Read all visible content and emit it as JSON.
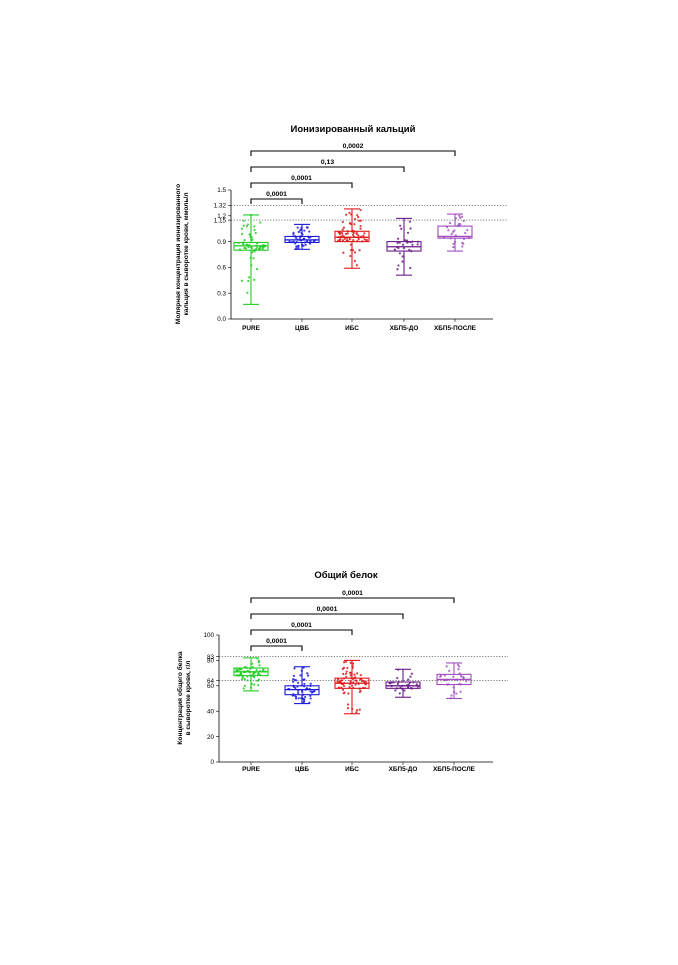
{
  "chart_data": [
    {
      "type": "box",
      "title": "Ионизированный кальций",
      "ylabel": [
        "Молярная концентрация ионизированного",
        "кальция в сыворотке крови, ммоль/л"
      ],
      "ylim": [
        0,
        1.5
      ],
      "yticks": [
        0.0,
        0.3,
        0.6,
        0.9,
        1.15,
        1.2,
        1.32,
        1.5
      ],
      "ytick_labels": [
        "0.0",
        "0.3",
        "0.6",
        "0.9",
        "1.15",
        "1.2",
        "1.32",
        "1.5"
      ],
      "reference_lines": [
        1.15,
        1.32
      ],
      "categories": [
        "PURE",
        "ЦВБ",
        "ИБС",
        "ХБП5-ДО",
        "ХБП5-ПОСЛЕ"
      ],
      "colors": [
        "#22cc22",
        "#1a1adc",
        "#e01818",
        "#6a1a8a",
        "#a24cc0"
      ],
      "boxes": [
        {
          "min": 0.17,
          "q1": 0.8,
          "median": 0.85,
          "q3": 0.89,
          "max": 1.21
        },
        {
          "min": 0.81,
          "q1": 0.89,
          "median": 0.92,
          "q3": 0.96,
          "max": 1.1
        },
        {
          "min": 0.59,
          "q1": 0.9,
          "median": 0.95,
          "q3": 1.02,
          "max": 1.28
        },
        {
          "min": 0.51,
          "q1": 0.79,
          "median": 0.84,
          "q3": 0.9,
          "max": 1.17
        },
        {
          "min": 0.79,
          "q1": 0.94,
          "median": 0.96,
          "q3": 1.08,
          "max": 1.22
        }
      ],
      "point_counts": [
        60,
        45,
        70,
        30,
        28
      ],
      "comparisons": [
        {
          "from": 0,
          "to": 1,
          "label": "0,0001"
        },
        {
          "from": 0,
          "to": 2,
          "label": "0,0001"
        },
        {
          "from": 0,
          "to": 3,
          "label": "0,13"
        },
        {
          "from": 0,
          "to": 4,
          "label": "0,0002"
        }
      ]
    },
    {
      "type": "box",
      "title": "Общий белок",
      "ylabel": [
        "Концентрация общего белка",
        "в сыворотке крови, г/л"
      ],
      "ylim": [
        0,
        100
      ],
      "yticks": [
        0,
        20,
        40,
        60,
        64,
        80,
        83,
        100
      ],
      "ytick_labels": [
        "0",
        "20",
        "40",
        "60",
        "64",
        "80",
        "83",
        "100"
      ],
      "reference_lines": [
        64,
        83
      ],
      "categories": [
        "PURE",
        "ЦВБ",
        "ИБС",
        "ХБП5-ДО",
        "ХБП5-ПОСЛЕ"
      ],
      "colors": [
        "#22cc22",
        "#1a1adc",
        "#e01818",
        "#6a1a8a",
        "#a24cc0"
      ],
      "boxes": [
        {
          "min": 56,
          "q1": 68,
          "median": 71,
          "q3": 74,
          "max": 82
        },
        {
          "min": 46,
          "q1": 53,
          "median": 57,
          "q3": 60,
          "max": 75
        },
        {
          "min": 38,
          "q1": 58,
          "median": 62,
          "q3": 66,
          "max": 80
        },
        {
          "min": 51,
          "q1": 58,
          "median": 60,
          "q3": 63,
          "max": 73
        },
        {
          "min": 50,
          "q1": 61,
          "median": 65,
          "q3": 69,
          "max": 78
        }
      ],
      "point_counts": [
        60,
        55,
        75,
        30,
        28
      ],
      "comparisons": [
        {
          "from": 0,
          "to": 1,
          "label": "0,0001"
        },
        {
          "from": 0,
          "to": 2,
          "label": "0,0001"
        },
        {
          "from": 0,
          "to": 3,
          "label": "0,0001"
        },
        {
          "from": 0,
          "to": 4,
          "label": "0,0001"
        }
      ]
    }
  ]
}
